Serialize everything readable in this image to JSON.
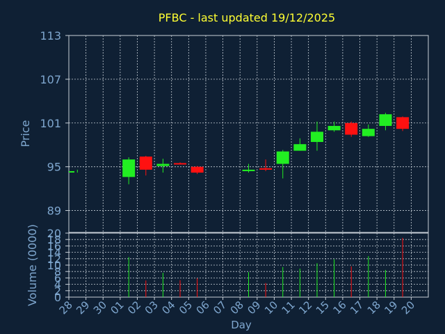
{
  "chart_data": {
    "type": "candlestick",
    "title": "PFBC - last updated 19/12/2025",
    "xlabel": "Day",
    "price_ylabel": "Price",
    "volume_ylabel": "Volume (0000)",
    "price_ylim": [
      86,
      113
    ],
    "price_yticks": [
      "89",
      "95",
      "101",
      "107",
      "113"
    ],
    "volume_ylim": [
      0,
      20
    ],
    "volume_yticks": [
      "0",
      "2",
      "4",
      "6",
      "8",
      "10",
      "12",
      "14",
      "16",
      "18",
      "20"
    ],
    "days": [
      "28",
      "29",
      "30",
      "01",
      "02",
      "03",
      "04",
      "05",
      "06",
      "07",
      "08",
      "09",
      "10",
      "11",
      "12",
      "15",
      "16",
      "17",
      "18",
      "19",
      "20"
    ],
    "candles": [
      {
        "day": "28",
        "open": 94.4,
        "high": 94.6,
        "low": 94.2,
        "close": 94.4
      },
      {
        "day": "01",
        "open": 93.6,
        "high": 96.3,
        "low": 92.6,
        "close": 96.0
      },
      {
        "day": "02",
        "open": 96.4,
        "high": 96.5,
        "low": 93.8,
        "close": 94.6
      },
      {
        "day": "03",
        "open": 95.1,
        "high": 96.1,
        "low": 94.2,
        "close": 95.4
      },
      {
        "day": "04",
        "open": 95.5,
        "high": 95.6,
        "low": 95.3,
        "close": 95.4
      },
      {
        "day": "05",
        "open": 95.0,
        "high": 95.1,
        "low": 94.0,
        "close": 94.2
      },
      {
        "day": "08",
        "open": 94.4,
        "high": 95.4,
        "low": 94.2,
        "close": 94.6
      },
      {
        "day": "09",
        "open": 94.8,
        "high": 96.0,
        "low": 94.4,
        "close": 94.6
      },
      {
        "day": "10",
        "open": 95.4,
        "high": 97.3,
        "low": 93.4,
        "close": 97.1
      },
      {
        "day": "11",
        "open": 97.2,
        "high": 98.9,
        "low": 97.2,
        "close": 98.1
      },
      {
        "day": "12",
        "open": 98.4,
        "high": 101.2,
        "low": 97.2,
        "close": 99.8
      },
      {
        "day": "15",
        "open": 100.0,
        "high": 101.2,
        "low": 99.8,
        "close": 100.6
      },
      {
        "day": "16",
        "open": 101.0,
        "high": 101.2,
        "low": 99.1,
        "close": 99.4
      },
      {
        "day": "17",
        "open": 99.2,
        "high": 100.8,
        "low": 99.1,
        "close": 100.2
      },
      {
        "day": "18",
        "open": 100.6,
        "high": 102.4,
        "low": 100.0,
        "close": 102.2
      },
      {
        "day": "19",
        "open": 101.8,
        "high": 101.9,
        "low": 99.9,
        "close": 100.2
      }
    ],
    "volumes": [
      {
        "day": "01",
        "value": 12.5,
        "dir": "up"
      },
      {
        "day": "02",
        "value": 5.2,
        "dir": "down"
      },
      {
        "day": "03",
        "value": 7.6,
        "dir": "up"
      },
      {
        "day": "04",
        "value": 5.3,
        "dir": "down"
      },
      {
        "day": "05",
        "value": 5.9,
        "dir": "down"
      },
      {
        "day": "08",
        "value": 7.8,
        "dir": "up"
      },
      {
        "day": "09",
        "value": 4.4,
        "dir": "down"
      },
      {
        "day": "10",
        "value": 9.4,
        "dir": "up"
      },
      {
        "day": "11",
        "value": 8.9,
        "dir": "up"
      },
      {
        "day": "12",
        "value": 10.6,
        "dir": "up"
      },
      {
        "day": "15",
        "value": 11.8,
        "dir": "up"
      },
      {
        "day": "16",
        "value": 9.6,
        "dir": "down"
      },
      {
        "day": "17",
        "value": 12.8,
        "dir": "up"
      },
      {
        "day": "18",
        "value": 8.5,
        "dir": "up"
      },
      {
        "day": "19",
        "value": 18.5,
        "dir": "down"
      }
    ],
    "grid": true,
    "colors": {
      "background": "#0f2034",
      "up": "#22ee22",
      "down": "#ff1111",
      "title": "#ffff33",
      "axis_text": "#7fa7cf",
      "grid": "#c8d0d8"
    }
  }
}
